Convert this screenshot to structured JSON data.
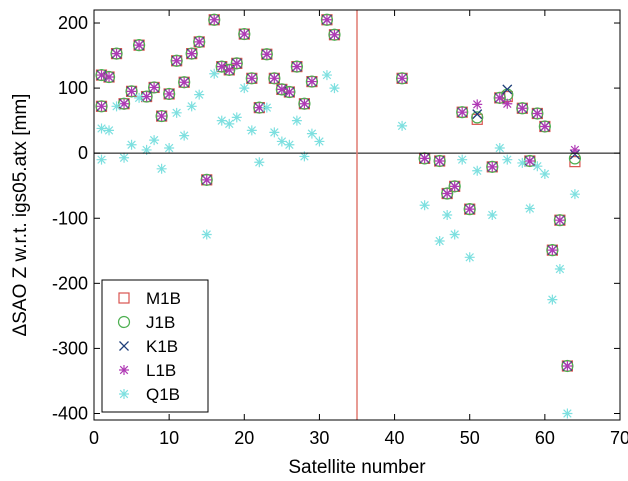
{
  "chart_data": {
    "type": "scatter",
    "xlabel": "Satellite number",
    "ylabel": "ΔSAO Z w.r.t. igs05.atx [mm]",
    "xlim": [
      0,
      70
    ],
    "ylim": [
      -410,
      220
    ],
    "xticks": [
      0,
      10,
      20,
      30,
      40,
      50,
      60,
      70
    ],
    "yticks": [
      -400,
      -300,
      -200,
      -100,
      0,
      100,
      200
    ],
    "grid": false,
    "legend_position": "bottom-left",
    "reference_lines": {
      "horizontal_y": 0,
      "vertical_x": 35
    },
    "series": [
      {
        "name": "M1B",
        "marker": "square",
        "color": "#d9534f",
        "points": [
          [
            1,
            120
          ],
          [
            1,
            72
          ],
          [
            2,
            117
          ],
          [
            3,
            153
          ],
          [
            4,
            76
          ],
          [
            5,
            95
          ],
          [
            6,
            166
          ],
          [
            7,
            87
          ],
          [
            8,
            101
          ],
          [
            9,
            57
          ],
          [
            10,
            91
          ],
          [
            11,
            142
          ],
          [
            12,
            109
          ],
          [
            13,
            153
          ],
          [
            14,
            171
          ],
          [
            15,
            -41
          ],
          [
            16,
            205
          ],
          [
            17,
            133
          ],
          [
            18,
            128
          ],
          [
            19,
            138
          ],
          [
            20,
            183
          ],
          [
            21,
            115
          ],
          [
            22,
            70
          ],
          [
            23,
            152
          ],
          [
            24,
            115
          ],
          [
            25,
            98
          ],
          [
            26,
            94
          ],
          [
            27,
            133
          ],
          [
            28,
            76
          ],
          [
            29,
            110
          ],
          [
            31,
            205
          ],
          [
            32,
            182
          ],
          [
            41,
            115
          ],
          [
            44,
            -8
          ],
          [
            46,
            -12
          ],
          [
            47,
            -62
          ],
          [
            48,
            -51
          ],
          [
            49,
            63
          ],
          [
            50,
            -86
          ],
          [
            51,
            52
          ],
          [
            53,
            -21
          ],
          [
            54,
            85
          ],
          [
            55,
            87
          ],
          [
            57,
            69
          ],
          [
            58,
            -12
          ],
          [
            59,
            61
          ],
          [
            60,
            41
          ],
          [
            61,
            -149
          ],
          [
            62,
            -103
          ],
          [
            63,
            -327
          ],
          [
            64,
            -13
          ]
        ]
      },
      {
        "name": "J1B",
        "marker": "circle",
        "color": "#4caf50",
        "points": [
          [
            1,
            120
          ],
          [
            1,
            72
          ],
          [
            2,
            117
          ],
          [
            3,
            153
          ],
          [
            4,
            76
          ],
          [
            5,
            95
          ],
          [
            6,
            166
          ],
          [
            7,
            87
          ],
          [
            8,
            101
          ],
          [
            9,
            57
          ],
          [
            10,
            91
          ],
          [
            11,
            142
          ],
          [
            12,
            109
          ],
          [
            13,
            153
          ],
          [
            14,
            171
          ],
          [
            15,
            -41
          ],
          [
            16,
            205
          ],
          [
            17,
            133
          ],
          [
            18,
            128
          ],
          [
            19,
            138
          ],
          [
            20,
            183
          ],
          [
            21,
            115
          ],
          [
            22,
            70
          ],
          [
            23,
            152
          ],
          [
            24,
            115
          ],
          [
            25,
            98
          ],
          [
            26,
            94
          ],
          [
            27,
            133
          ],
          [
            28,
            76
          ],
          [
            29,
            110
          ],
          [
            31,
            205
          ],
          [
            32,
            182
          ],
          [
            41,
            115
          ],
          [
            44,
            -8
          ],
          [
            46,
            -12
          ],
          [
            47,
            -62
          ],
          [
            48,
            -51
          ],
          [
            49,
            63
          ],
          [
            50,
            -86
          ],
          [
            51,
            55
          ],
          [
            53,
            -21
          ],
          [
            54,
            85
          ],
          [
            55,
            90
          ],
          [
            57,
            69
          ],
          [
            58,
            -12
          ],
          [
            59,
            61
          ],
          [
            60,
            41
          ],
          [
            61,
            -149
          ],
          [
            62,
            -103
          ],
          [
            63,
            -327
          ],
          [
            64,
            -8
          ]
        ]
      },
      {
        "name": "K1B",
        "marker": "x",
        "color": "#1f3f7a",
        "points": [
          [
            1,
            120
          ],
          [
            1,
            72
          ],
          [
            2,
            117
          ],
          [
            3,
            153
          ],
          [
            4,
            76
          ],
          [
            5,
            95
          ],
          [
            6,
            166
          ],
          [
            7,
            87
          ],
          [
            8,
            101
          ],
          [
            9,
            57
          ],
          [
            10,
            91
          ],
          [
            11,
            142
          ],
          [
            12,
            109
          ],
          [
            13,
            153
          ],
          [
            14,
            171
          ],
          [
            15,
            -41
          ],
          [
            16,
            205
          ],
          [
            17,
            133
          ],
          [
            18,
            128
          ],
          [
            19,
            138
          ],
          [
            20,
            183
          ],
          [
            21,
            115
          ],
          [
            22,
            70
          ],
          [
            23,
            152
          ],
          [
            24,
            115
          ],
          [
            25,
            98
          ],
          [
            26,
            94
          ],
          [
            27,
            133
          ],
          [
            28,
            76
          ],
          [
            29,
            110
          ],
          [
            31,
            205
          ],
          [
            32,
            182
          ],
          [
            41,
            115
          ],
          [
            44,
            -8
          ],
          [
            46,
            -12
          ],
          [
            47,
            -62
          ],
          [
            48,
            -51
          ],
          [
            49,
            63
          ],
          [
            50,
            -86
          ],
          [
            51,
            60
          ],
          [
            53,
            -21
          ],
          [
            54,
            85
          ],
          [
            55,
            98
          ],
          [
            57,
            69
          ],
          [
            58,
            -12
          ],
          [
            59,
            61
          ],
          [
            60,
            41
          ],
          [
            61,
            -149
          ],
          [
            62,
            -103
          ],
          [
            63,
            -327
          ],
          [
            64,
            -2
          ]
        ]
      },
      {
        "name": "L1B",
        "marker": "star",
        "color": "#b03ab5",
        "points": [
          [
            1,
            120
          ],
          [
            1,
            72
          ],
          [
            2,
            117
          ],
          [
            3,
            153
          ],
          [
            4,
            76
          ],
          [
            5,
            95
          ],
          [
            6,
            166
          ],
          [
            7,
            87
          ],
          [
            8,
            101
          ],
          [
            9,
            57
          ],
          [
            10,
            91
          ],
          [
            11,
            142
          ],
          [
            12,
            109
          ],
          [
            13,
            153
          ],
          [
            14,
            171
          ],
          [
            15,
            -41
          ],
          [
            16,
            205
          ],
          [
            17,
            133
          ],
          [
            18,
            128
          ],
          [
            19,
            138
          ],
          [
            20,
            183
          ],
          [
            21,
            115
          ],
          [
            22,
            70
          ],
          [
            23,
            152
          ],
          [
            24,
            115
          ],
          [
            25,
            98
          ],
          [
            26,
            94
          ],
          [
            27,
            133
          ],
          [
            28,
            76
          ],
          [
            29,
            110
          ],
          [
            31,
            205
          ],
          [
            32,
            182
          ],
          [
            41,
            115
          ],
          [
            44,
            -8
          ],
          [
            46,
            -12
          ],
          [
            47,
            -62
          ],
          [
            48,
            -51
          ],
          [
            49,
            63
          ],
          [
            50,
            -86
          ],
          [
            51,
            75
          ],
          [
            53,
            -21
          ],
          [
            54,
            85
          ],
          [
            55,
            76
          ],
          [
            57,
            69
          ],
          [
            58,
            -12
          ],
          [
            59,
            61
          ],
          [
            60,
            41
          ],
          [
            61,
            -149
          ],
          [
            62,
            -103
          ],
          [
            63,
            -327
          ],
          [
            64,
            5
          ]
        ]
      },
      {
        "name": "Q1B",
        "marker": "star",
        "color": "#7ee0e0",
        "points": [
          [
            1,
            38
          ],
          [
            1,
            -10
          ],
          [
            2,
            35
          ],
          [
            3,
            72
          ],
          [
            4,
            -7
          ],
          [
            5,
            13
          ],
          [
            6,
            85
          ],
          [
            7,
            5
          ],
          [
            8,
            20
          ],
          [
            9,
            -24
          ],
          [
            10,
            8
          ],
          [
            11,
            62
          ],
          [
            12,
            27
          ],
          [
            13,
            72
          ],
          [
            14,
            90
          ],
          [
            15,
            -125
          ],
          [
            16,
            122
          ],
          [
            17,
            50
          ],
          [
            18,
            45
          ],
          [
            19,
            55
          ],
          [
            20,
            100
          ],
          [
            21,
            35
          ],
          [
            22,
            -14
          ],
          [
            23,
            70
          ],
          [
            24,
            32
          ],
          [
            25,
            18
          ],
          [
            26,
            13
          ],
          [
            27,
            50
          ],
          [
            28,
            -5
          ],
          [
            29,
            30
          ],
          [
            30,
            18
          ],
          [
            31,
            120
          ],
          [
            32,
            100
          ],
          [
            41,
            42
          ],
          [
            44,
            -80
          ],
          [
            46,
            -135
          ],
          [
            47,
            -95
          ],
          [
            48,
            -125
          ],
          [
            49,
            -10
          ],
          [
            50,
            -160
          ],
          [
            51,
            -27
          ],
          [
            53,
            -95
          ],
          [
            54,
            8
          ],
          [
            55,
            -10
          ],
          [
            57,
            -15
          ],
          [
            58,
            -85
          ],
          [
            59,
            -20
          ],
          [
            60,
            -32
          ],
          [
            61,
            -225
          ],
          [
            62,
            -178
          ],
          [
            63,
            -400
          ],
          [
            64,
            -63
          ]
        ]
      }
    ]
  }
}
